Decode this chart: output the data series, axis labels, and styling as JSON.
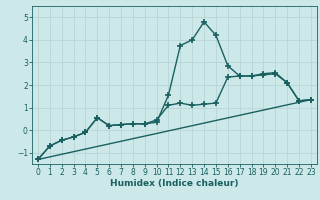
{
  "title": "",
  "xlabel": "Humidex (Indice chaleur)",
  "ylabel": "",
  "xlim": [
    -0.5,
    23.5
  ],
  "ylim": [
    -1.5,
    5.5
  ],
  "yticks": [
    -1,
    0,
    1,
    2,
    3,
    4,
    5
  ],
  "xticks": [
    0,
    1,
    2,
    3,
    4,
    5,
    6,
    7,
    8,
    9,
    10,
    11,
    12,
    13,
    14,
    15,
    16,
    17,
    18,
    19,
    20,
    21,
    22,
    23
  ],
  "background_color": "#cce8e8",
  "grid_color": "#b8d4d4",
  "line_color": "#1a6060",
  "line1_x": [
    0,
    1,
    2,
    3,
    4,
    5,
    6,
    7,
    8,
    9,
    10,
    11,
    12,
    13,
    14,
    15,
    16,
    17,
    18,
    19,
    20,
    21,
    22,
    23
  ],
  "line1_y": [
    -1.3,
    -0.7,
    -0.45,
    -0.3,
    -0.1,
    0.55,
    0.2,
    0.25,
    0.28,
    0.28,
    0.35,
    1.55,
    3.75,
    4.0,
    4.8,
    4.2,
    2.85,
    2.4,
    2.4,
    2.5,
    2.55,
    2.1,
    1.3,
    1.35
  ],
  "line2_x": [
    0,
    1,
    2,
    3,
    4,
    5,
    6,
    7,
    8,
    9,
    10,
    11,
    12,
    13,
    14,
    15,
    16,
    17,
    18,
    19,
    20,
    21,
    22,
    23
  ],
  "line2_y": [
    -1.3,
    -0.7,
    -0.45,
    -0.3,
    -0.1,
    0.55,
    0.2,
    0.25,
    0.28,
    0.28,
    0.45,
    1.1,
    1.2,
    1.1,
    1.15,
    1.2,
    2.35,
    2.4,
    2.4,
    2.45,
    2.5,
    2.1,
    1.3,
    1.35
  ],
  "line3_x": [
    0,
    23
  ],
  "line3_y": [
    -1.3,
    1.35
  ],
  "marker": "+",
  "markersize": 4,
  "linewidth": 1.0,
  "tick_fontsize": 5.5,
  "xlabel_fontsize": 6.5
}
